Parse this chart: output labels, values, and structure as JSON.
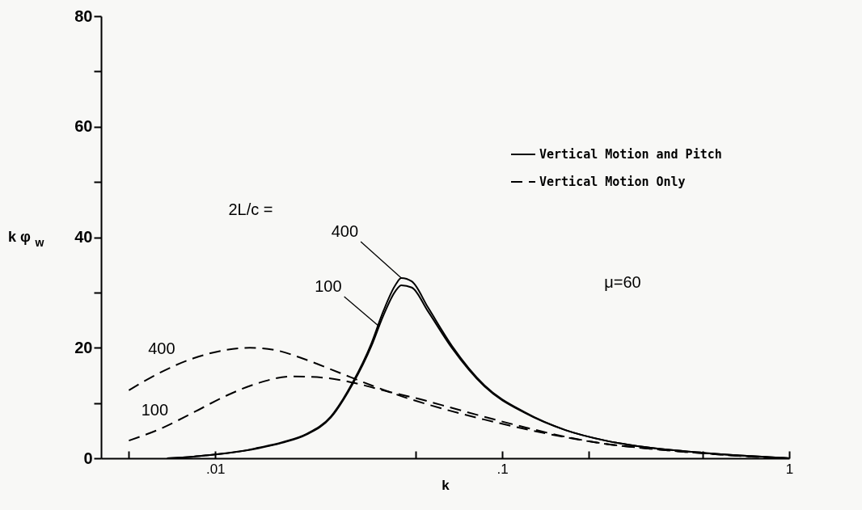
{
  "chart_data": {
    "type": "line",
    "xlabel": "k",
    "ylabel": "k φ$_{w}$",
    "log": "x",
    "xlim": [
      0.004,
      1
    ],
    "xticks": [
      {
        "value": 0.005,
        "label": null
      },
      {
        "value": 0.01,
        "label": ".01"
      },
      {
        "value": 0.05,
        "label": null
      },
      {
        "value": 0.1,
        "label": ".1"
      },
      {
        "value": 0.2,
        "label": null
      },
      {
        "value": 0.5,
        "label": null
      },
      1
    ],
    "ylim": [
      0,
      80
    ],
    "yticks": [
      0,
      {
        "value": 10,
        "label": null
      },
      20,
      {
        "value": 30,
        "label": null
      },
      40,
      {
        "value": 50,
        "label": null
      },
      60,
      {
        "value": 70,
        "label": null
      },
      80
    ],
    "grid": false,
    "legend": "top right",
    "marker": "none",
    "series": [
      {
        "name": "Vertical Motion and Pitch",
        "color": "#000000",
        "line_style": "solid",
        "x": [
          0.0068,
          0.0084,
          0.01,
          0.0124,
          0.0141,
          0.0171,
          0.0208,
          0.0253,
          0.0301,
          0.035,
          0.0385,
          0.0425,
          0.0445,
          0.0484,
          0.0551,
          0.0669,
          0.0867,
          0.12,
          0.166,
          0.229,
          0.317,
          0.5,
          0.738,
          1
        ],
        "values": [
          0,
          0.3,
          0.7,
          1.3,
          1.9,
          2.9,
          4.4,
          7.6,
          13.7,
          20.8,
          26.6,
          31.4,
          32.6,
          32.0,
          27.3,
          20.3,
          13.2,
          8.3,
          5.1,
          3.2,
          2.0,
          1.0,
          0.4,
          0
        ]
      },
      {
        "color": "#000000",
        "line_style": "solid",
        "x": [
          0.0068,
          0.0084,
          0.01,
          0.0124,
          0.0141,
          0.0171,
          0.0208,
          0.0253,
          0.0301,
          0.035,
          0.0385,
          0.0425,
          0.0445,
          0.0484,
          0.0551,
          0.0669,
          0.0867,
          0.12,
          0.166,
          0.229,
          0.317,
          0.5,
          0.738,
          1
        ],
        "values": [
          0,
          0.3,
          0.7,
          1.3,
          1.8,
          2.8,
          4.3,
          7.4,
          13.4,
          20.3,
          25.8,
          30.3,
          31.3,
          30.9,
          26.6,
          19.9,
          13.0,
          8.2,
          5.1,
          3.2,
          2.0,
          1.0,
          0.4,
          0
        ]
      },
      {
        "name": "Vertical Motion Only",
        "color": "#000000",
        "line_style": "dashed",
        "x": [
          0.005,
          0.00648,
          0.0084,
          0.0109,
          0.0132,
          0.0161,
          0.0208,
          0.027,
          0.035,
          0.0453,
          0.0627,
          0.0867,
          0.12,
          0.166,
          0.229,
          0.317,
          0.5,
          0.738,
          1
        ],
        "values": [
          12.3,
          15.6,
          18.1,
          19.6,
          20.0,
          19.6,
          17.8,
          15.5,
          13.2,
          11.1,
          8.9,
          7.0,
          5.3,
          3.8,
          2.6,
          1.8,
          0.9,
          0.3,
          0
        ]
      },
      {
        "color": "#000000",
        "line_style": "dashed",
        "x": [
          0.005,
          0.00648,
          0.0084,
          0.0109,
          0.0141,
          0.0183,
          0.0237,
          0.0307,
          0.0398,
          0.0516,
          0.0669,
          0.0867,
          0.12,
          0.166,
          0.229,
          0.317,
          0.5,
          0.738,
          1
        ],
        "values": [
          3.2,
          5.4,
          8.3,
          11.3,
          13.6,
          14.8,
          14.6,
          13.6,
          12.1,
          10.7,
          9.1,
          7.5,
          5.6,
          3.9,
          2.6,
          1.8,
          0.9,
          0.3,
          0
        ]
      }
    ],
    "annotations": [
      {
        "text": "400",
        "x": 0.0445,
        "y": 32.6
      },
      {
        "text": "100",
        "x": 0.037,
        "y": 24
      },
      {
        "text": "400",
        "x": 0.0065,
        "y": 15.6
      },
      {
        "text": "100",
        "x": 0.0084,
        "y": 8.3
      },
      "2L/c =",
      "μ=60"
    ]
  }
}
